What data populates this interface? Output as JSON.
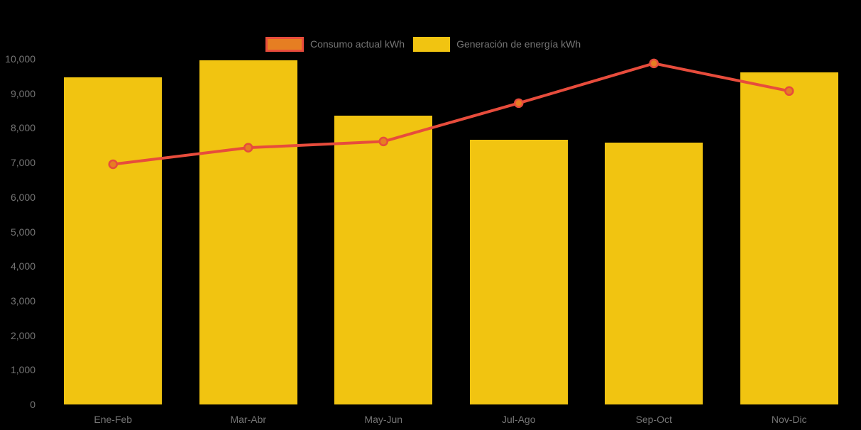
{
  "background_color": "#000000",
  "text_color": "#757575",
  "legend": {
    "items": [
      {
        "label": "Consumo actual kWh",
        "swatch_fill": "#E67E22",
        "swatch_border": "#E74C3C",
        "series_type": "line"
      },
      {
        "label": "Generación de energía kWh",
        "swatch_fill": "#F1C411",
        "swatch_border": "#F1C411",
        "series_type": "bar"
      }
    ]
  },
  "chart_data": {
    "type": "bar+line combo",
    "categories": [
      "Ene-Feb",
      "Mar-Abr",
      "May-Jun",
      "Jul-Ago",
      "Sep-Oct",
      "Nov-Dic"
    ],
    "series": [
      {
        "name": "Consumo actual kWh",
        "type": "line",
        "color": "#E74C3C",
        "marker_color": "#E67E22",
        "values": [
          6950,
          7430,
          7610,
          8720,
          9870,
          9070
        ]
      },
      {
        "name": "Generación de energía kWh",
        "type": "bar",
        "color": "#F1C411",
        "values": [
          9470,
          9950,
          8350,
          7660,
          7570,
          9600
        ]
      }
    ],
    "title": "",
    "xlabel": "",
    "ylabel": "",
    "ylim": [
      0,
      10000
    ],
    "ytick_step": 1000,
    "ytick_labels": [
      "0",
      "1,000",
      "2,000",
      "3,000",
      "4,000",
      "5,000",
      "6,000",
      "7,000",
      "8,000",
      "9,000",
      "10,000"
    ],
    "grid": false,
    "legend_position": "top-center"
  }
}
